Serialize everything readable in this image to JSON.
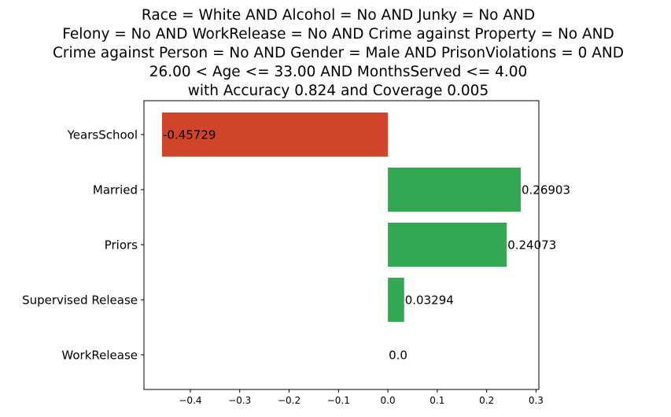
{
  "chart_data": {
    "type": "bar",
    "orientation": "horizontal",
    "title_lines": [
      "Race = White AND Alcohol = No AND Junky = No AND",
      "Felony = No AND WorkRelease = No AND Crime against Property = No AND",
      "Crime against Person = No AND Gender = Male AND PrisonViolations = 0 AND",
      "26.00 < Age <= 33.00 AND MonthsServed <= 4.00",
      "with Accuracy 0.824 and Coverage 0.005"
    ],
    "categories": [
      "YearsSchool",
      "Married",
      "Priors",
      "Supervised Release",
      "WorkRelease"
    ],
    "values": [
      -0.45729,
      0.26903,
      0.24073,
      0.03294,
      0.0
    ],
    "value_labels": [
      "-0.45729",
      "0.26903",
      "0.24073",
      "0.03294",
      "0.0"
    ],
    "xticks": [
      -0.4,
      -0.3,
      -0.2,
      -0.1,
      0.0,
      0.1,
      0.2,
      0.3
    ],
    "xtick_labels": [
      "−0.4",
      "−0.3",
      "−0.2",
      "−0.1",
      "0.0",
      "0.1",
      "0.2",
      "0.3"
    ],
    "xlim": [
      -0.4939,
      0.3057
    ],
    "xlabel": "",
    "ylabel": "",
    "grid": false,
    "colors": {
      "negative": "#d0452a",
      "positive": "#33a852"
    }
  }
}
